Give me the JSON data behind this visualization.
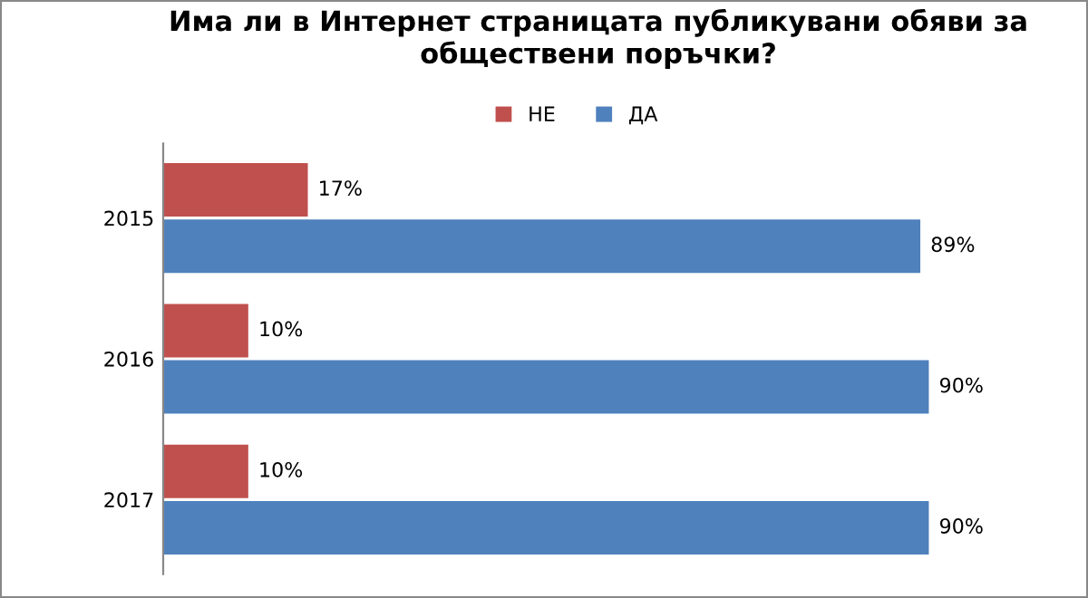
{
  "chart_data": {
    "type": "bar",
    "orientation": "horizontal",
    "title": "Има ли в Интернет страницата публикувани обяви за обществени поръчки?",
    "categories": [
      "2015",
      "2016",
      "2017"
    ],
    "series": [
      {
        "name": "НЕ",
        "color": "#c0504d",
        "values": [
          17,
          10,
          10
        ],
        "value_labels": [
          "17%",
          "10%",
          "10%"
        ]
      },
      {
        "name": "ДА",
        "color": "#4f81bd",
        "values": [
          89,
          90,
          90
        ],
        "value_labels": [
          "89%",
          "90%",
          "90%"
        ]
      }
    ],
    "legend": "top",
    "grid": false,
    "tick_labels": "y"
  }
}
